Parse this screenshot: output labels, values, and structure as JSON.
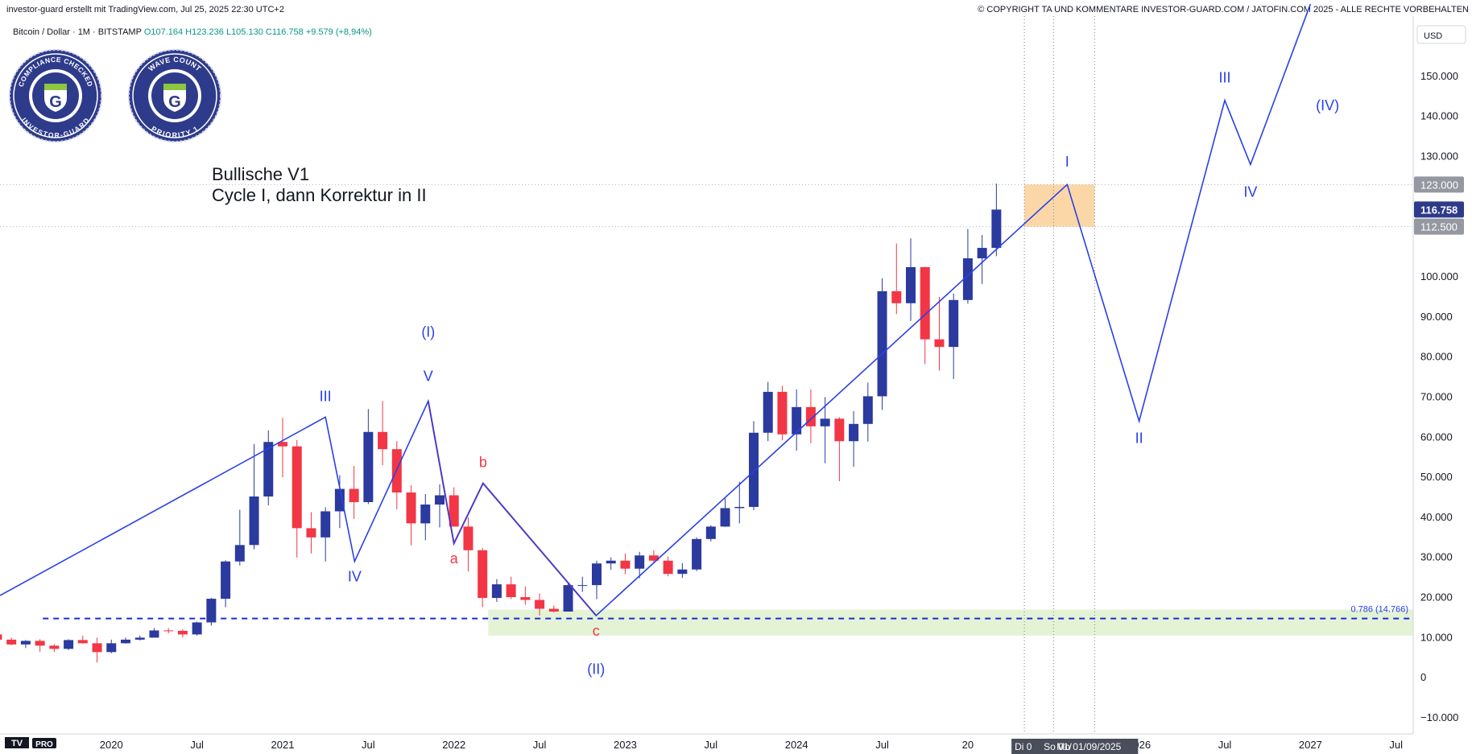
{
  "header": {
    "left": "investor-guard erstellt mit TradingView.com, Jul 25, 2025 22:30 UTC+2",
    "right": "© COPYRIGHT TA UND KOMMENTARE INVESTOR-GUARD.COM / JATOFIN.COM 2025 - ALLE RECHTE VORBEHALTEN"
  },
  "symbol_info": {
    "name": "Bitcoin / Dollar · 1M · BITSTAMP",
    "ohlc": "O107.164 H123.236 L105.130 C116.758 +9.579 (+8,94%)"
  },
  "badges": [
    {
      "top_text": "COMPLIANCE CHECKED",
      "bottom_text": "INVESTOR-GUARD",
      "letter": "G"
    },
    {
      "top_text": "WAVE COUNT",
      "bottom_text": "PRIORITY 1",
      "letter": "G"
    }
  ],
  "currency": "USD",
  "logo": {
    "mark": "TV",
    "pro": "PRO"
  },
  "chart_data": {
    "type": "candlestick",
    "title": "Bullische V1",
    "subtitle": "Cycle I, dann Korrektur in II",
    "ylim": [
      -14000,
      163000
    ],
    "x_start": 2019.35,
    "x_end": 2027.6,
    "y_ticks": [
      -10000,
      0,
      10000,
      20000,
      30000,
      40000,
      50000,
      60000,
      70000,
      80000,
      90000,
      100000,
      110000,
      120000,
      130000,
      140000,
      150000
    ],
    "y_tick_labels": [
      "−10.000",
      "0",
      "10.000",
      "20.000",
      "30.000",
      "40.000",
      "50.000",
      "60.000",
      "70.000",
      "80.000",
      "90.000",
      "100.000",
      "",
      "",
      "130.000",
      "140.000",
      "150.000"
    ],
    "x_ticks": [
      {
        "t": 2020.0,
        "label": "2020"
      },
      {
        "t": 2020.5,
        "label": "Jul"
      },
      {
        "t": 2021.0,
        "label": "2021"
      },
      {
        "t": 2021.5,
        "label": "Jul"
      },
      {
        "t": 2022.0,
        "label": "2022"
      },
      {
        "t": 2022.5,
        "label": "Jul"
      },
      {
        "t": 2023.0,
        "label": "2023"
      },
      {
        "t": 2023.5,
        "label": "Jul"
      },
      {
        "t": 2024.0,
        "label": "2024"
      },
      {
        "t": 2024.5,
        "label": "Jul"
      },
      {
        "t": 2025.0,
        "label": "20"
      },
      {
        "t": 2026.0,
        "label": "2026"
      },
      {
        "t": 2026.5,
        "label": "Jul"
      },
      {
        "t": 2027.0,
        "label": "2027"
      },
      {
        "t": 2027.5,
        "label": "Jul"
      }
    ],
    "x_time_labels": [
      "Di 0",
      "So 01/",
      "Mo 01/09/2025"
    ],
    "candles_ohlc": [
      [
        10800,
        11000,
        8000,
        9500
      ],
      [
        9500,
        10000,
        8100,
        8300
      ],
      [
        8300,
        9400,
        7400,
        9200
      ],
      [
        9200,
        9600,
        6500,
        8000
      ],
      [
        8000,
        8400,
        6400,
        7200
      ],
      [
        7200,
        9600,
        6900,
        9400
      ],
      [
        9400,
        10500,
        8500,
        8600
      ],
      [
        8600,
        10000,
        3800,
        6400
      ],
      [
        6400,
        9500,
        6100,
        8600
      ],
      [
        8600,
        10000,
        8500,
        9500
      ],
      [
        9500,
        10500,
        9300,
        10000
      ],
      [
        10000,
        12400,
        10000,
        11800
      ],
      [
        11800,
        12400,
        11100,
        11700
      ],
      [
        11700,
        12100,
        10000,
        10800
      ],
      [
        10800,
        14000,
        10500,
        13800
      ],
      [
        13800,
        19900,
        13000,
        19700
      ],
      [
        19700,
        29300,
        17600,
        29000
      ],
      [
        29000,
        41900,
        28000,
        33100
      ],
      [
        33100,
        58300,
        32000,
        45200
      ],
      [
        45200,
        61700,
        43000,
        58800
      ],
      [
        58800,
        64800,
        50000,
        57700
      ],
      [
        57700,
        59300,
        30000,
        37300
      ],
      [
        37300,
        41300,
        31000,
        35000
      ],
      [
        35000,
        42500,
        29000,
        41500
      ],
      [
        41500,
        50500,
        37300,
        47100
      ],
      [
        47100,
        52800,
        39600,
        43800
      ],
      [
        43800,
        67000,
        43300,
        61300
      ],
      [
        61300,
        69000,
        53000,
        57000
      ],
      [
        57000,
        59000,
        42000,
        46200
      ],
      [
        46200,
        48000,
        33000,
        38500
      ],
      [
        38500,
        45800,
        34300,
        43200
      ],
      [
        43200,
        48200,
        37500,
        45500
      ],
      [
        45500,
        47500,
        37700,
        37700
      ],
      [
        37700,
        40000,
        26500,
        31800
      ],
      [
        31800,
        32400,
        17600,
        19900
      ],
      [
        19900,
        24600,
        18900,
        23300
      ],
      [
        23300,
        25200,
        19600,
        20100
      ],
      [
        20100,
        22800,
        18200,
        19400
      ],
      [
        19400,
        21000,
        15500,
        17200
      ],
      [
        17200,
        18000,
        16300,
        16500
      ],
      [
        16500,
        23900,
        16500,
        23100
      ],
      [
        23100,
        25200,
        21400,
        23100
      ],
      [
        23100,
        29200,
        19600,
        28500
      ],
      [
        28500,
        30000,
        26900,
        29200
      ],
      [
        29200,
        31000,
        25800,
        27200
      ],
      [
        27200,
        31400,
        24800,
        30500
      ],
      [
        30500,
        31800,
        28800,
        29200
      ],
      [
        29200,
        30200,
        25300,
        25900
      ],
      [
        25900,
        28600,
        24900,
        27000
      ],
      [
        27000,
        35000,
        26600,
        34600
      ],
      [
        34600,
        38000,
        34000,
        37700
      ],
      [
        37700,
        44700,
        37600,
        42300
      ],
      [
        42300,
        48900,
        38500,
        42600
      ],
      [
        42600,
        64000,
        41800,
        61100
      ],
      [
        61100,
        73800,
        59000,
        71300
      ],
      [
        71300,
        72800,
        59200,
        60700
      ],
      [
        60700,
        71900,
        56600,
        67500
      ],
      [
        67500,
        71900,
        58500,
        62700
      ],
      [
        62700,
        70000,
        53500,
        64600
      ],
      [
        64600,
        65000,
        49000,
        59000
      ],
      [
        59000,
        66500,
        52600,
        63300
      ],
      [
        63300,
        73600,
        58900,
        70200
      ],
      [
        70200,
        99600,
        66800,
        96400
      ],
      [
        96400,
        108300,
        90700,
        93400
      ],
      [
        93400,
        109600,
        89000,
        102400
      ],
      [
        102400,
        102500,
        78200,
        84400
      ],
      [
        84400,
        95000,
        76600,
        82500
      ],
      [
        82500,
        95800,
        74500,
        94200
      ],
      [
        94200,
        111900,
        93300,
        104600
      ],
      [
        104600,
        110400,
        98200,
        107200
      ],
      [
        107200,
        123236,
        105130,
        116758
      ]
    ],
    "price_labels": [
      {
        "value": 123000,
        "label": "123.000",
        "kind": "gray"
      },
      {
        "value": 116758,
        "label": "116.758",
        "kind": "last"
      },
      {
        "value": 112500,
        "label": "112.500",
        "kind": "gray"
      }
    ],
    "fib_level": {
      "value": 14766,
      "label": "0.786 (14.766)"
    },
    "target_zone": {
      "from": 112500,
      "to": 123000
    },
    "support_zone": {
      "from": 10500,
      "to": 17000
    },
    "wave_labels": [
      {
        "text": "III",
        "t": 2021.25,
        "p": 69000,
        "color": "blue"
      },
      {
        "text": "IV",
        "t": 2021.42,
        "p": 24000,
        "color": "blue"
      },
      {
        "text": "V",
        "t": 2021.85,
        "p": 74000,
        "color": "blue"
      },
      {
        "text": "(I)",
        "t": 2021.85,
        "p": 85000,
        "color": "blue"
      },
      {
        "text": "a",
        "t": 2022.0,
        "p": 28500,
        "color": "red"
      },
      {
        "text": "b",
        "t": 2022.17,
        "p": 52500,
        "color": "red"
      },
      {
        "text": "c",
        "t": 2022.83,
        "p": 10500,
        "color": "red"
      },
      {
        "text": "(II)",
        "t": 2022.83,
        "p": 1000,
        "color": "blue"
      },
      {
        "text": "I",
        "t": 2025.58,
        "p": 127500,
        "color": "blue"
      },
      {
        "text": "II",
        "t": 2026.0,
        "p": 58500,
        "color": "blue"
      },
      {
        "text": "III",
        "t": 2026.5,
        "p": 148500,
        "color": "blue"
      },
      {
        "text": "IV",
        "t": 2026.65,
        "p": 120000,
        "color": "blue"
      },
      {
        "text": "(IV)",
        "t": 2027.1,
        "p": 141500,
        "color": "blue"
      }
    ],
    "blue_path": [
      [
        2019.35,
        20500
      ],
      [
        2021.25,
        65000
      ],
      [
        2021.42,
        29000
      ],
      [
        2021.85,
        69000
      ],
      [
        2022.0,
        33500
      ],
      [
        2022.17,
        48500
      ],
      [
        2022.83,
        15500
      ],
      [
        2025.58,
        123000
      ],
      [
        2026.0,
        64000
      ],
      [
        2026.5,
        144000
      ],
      [
        2026.65,
        128000
      ],
      [
        2027.0,
        168000
      ]
    ],
    "red_path": [
      [
        2021.85,
        69000
      ],
      [
        2022.0,
        33500
      ],
      [
        2022.17,
        48500
      ],
      [
        2022.83,
        15500
      ]
    ]
  }
}
